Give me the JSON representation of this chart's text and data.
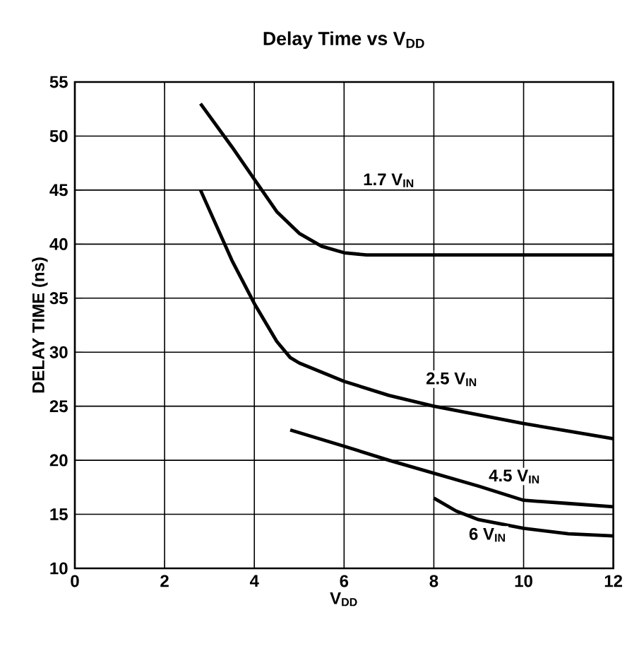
{
  "chart_data": {
    "type": "line",
    "title": "Delay Time vs V$_{DD}$",
    "xlabel": "V$_{DD}$",
    "ylabel": "DELAY TIME (ns)",
    "xlim": [
      0,
      12
    ],
    "ylim": [
      10,
      55
    ],
    "xticks": [
      0,
      2,
      4,
      6,
      8,
      10,
      12
    ],
    "yticks": [
      10,
      15,
      20,
      25,
      30,
      35,
      40,
      45,
      50,
      55
    ],
    "grid": true,
    "line_style": "solid",
    "marker": "none",
    "series": [
      {
        "color": "#000000",
        "x": [
          2.8,
          3.5,
          4,
          4.5,
          5,
          5.5,
          6,
          6.5,
          12
        ],
        "values": [
          53,
          49,
          46,
          43,
          41,
          39.8,
          39.2,
          39,
          39
        ]
      },
      {
        "color": "#000000",
        "x": [
          2.8,
          3.5,
          4,
          4.5,
          4.8,
          5,
          6,
          7,
          8,
          9,
          10,
          11,
          12
        ],
        "values": [
          45,
          38.5,
          34.5,
          31,
          29.5,
          29,
          27.3,
          26,
          25,
          24.2,
          23.4,
          22.7,
          22
        ]
      },
      {
        "color": "#000000",
        "x": [
          4.8,
          6,
          7,
          8,
          9,
          10,
          11,
          12
        ],
        "values": [
          22.8,
          21.3,
          20,
          18.8,
          17.6,
          16.3,
          16,
          15.7
        ]
      },
      {
        "color": "#000000",
        "x": [
          8,
          8.5,
          9,
          10,
          11,
          12
        ],
        "values": [
          16.5,
          15.3,
          14.5,
          13.7,
          13.2,
          13
        ]
      }
    ],
    "annotations": [
      {
        "text": "1.7 V$_{IN}$",
        "x": 7,
        "y": 45.9
      },
      {
        "text": "2.5 V$_{IN}$",
        "x": 8.4,
        "y": 27.5
      },
      {
        "text": "4.5 V$_{IN}$",
        "x": 9.8,
        "y": 18.5
      },
      {
        "text": "6 V$_{IN}$",
        "x": 9.2,
        "y": 13.1
      }
    ]
  }
}
